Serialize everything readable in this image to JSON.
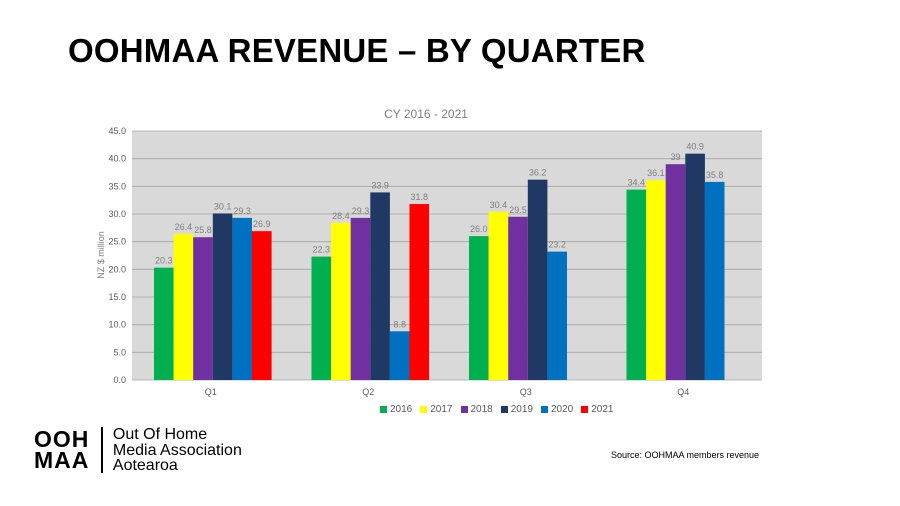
{
  "page": {
    "title": "OOHMAA REVENUE – BY QUARTER",
    "source": "Source: OOHMAA members revenue"
  },
  "logo": {
    "mark_line1": "OOH",
    "mark_line2": "MAA",
    "text_lines": [
      "Out Of Home",
      "Media Association",
      "Aotearoa"
    ]
  },
  "chart_data": {
    "type": "bar",
    "title": "CY 2016 - 2021",
    "ylabel": "NZ $ million",
    "xlabel": "",
    "ylim": [
      0,
      45
    ],
    "yticks": [
      "0.0",
      "5.0",
      "10.0",
      "15.0",
      "20.0",
      "25.0",
      "30.0",
      "35.0",
      "40.0",
      "45.0"
    ],
    "categories": [
      "Q1",
      "Q2",
      "Q3",
      "Q4"
    ],
    "legend_position": "bottom",
    "grid": true,
    "series": [
      {
        "name": "2016",
        "color": "#00b050",
        "values": [
          20.3,
          22.3,
          26.0,
          34.4
        ],
        "labels": [
          "20.3",
          "22.3",
          "26.0",
          "34.4"
        ]
      },
      {
        "name": "2017",
        "color": "#ffff00",
        "values": [
          26.4,
          28.4,
          30.4,
          36.1
        ],
        "labels": [
          "26.4",
          "28.4",
          "30.4",
          "36.1"
        ]
      },
      {
        "name": "2018",
        "color": "#7030a0",
        "values": [
          25.8,
          29.3,
          29.5,
          39.0
        ],
        "labels": [
          "25.8",
          "29.3",
          "29.5",
          "39"
        ]
      },
      {
        "name": "2019",
        "color": "#1f3864",
        "values": [
          30.1,
          33.9,
          36.2,
          40.9
        ],
        "labels": [
          "30.1",
          "33.9",
          "36.2",
          "40.9"
        ]
      },
      {
        "name": "2020",
        "color": "#0070c0",
        "values": [
          29.3,
          8.8,
          23.2,
          35.8
        ],
        "labels": [
          "29.3",
          "8.8",
          "23.2",
          "35.8"
        ]
      },
      {
        "name": "2021",
        "color": "#ff0000",
        "values": [
          26.9,
          31.8,
          null,
          null
        ],
        "labels": [
          "26.9",
          "31.8",
          null,
          null
        ]
      }
    ]
  }
}
